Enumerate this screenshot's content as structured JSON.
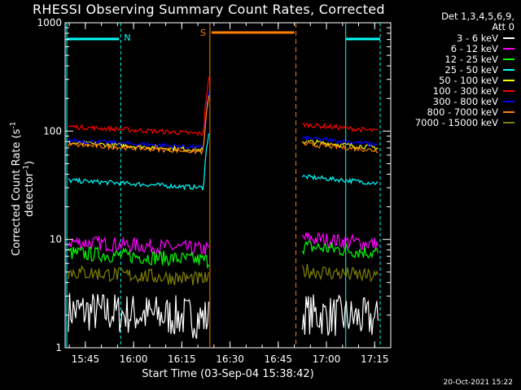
{
  "chart_data": {
    "type": "line",
    "title": "RHESSI Observing Summary Count Rates, Corrected",
    "xlabel": "Start Time (03-Sep-04 15:38:42)",
    "ylabel_main": "Corrected Count Rate (s",
    "ylabel_sup1": "-1",
    "ylabel_mid": " detector",
    "ylabel_sup2": "-1",
    "ylabel_end": ")",
    "yscale": "log",
    "ylim": [
      1,
      1000
    ],
    "xlim": [
      "15:38:42",
      "17:20:00"
    ],
    "x_ticks": [
      "15:45",
      "16:00",
      "16:15",
      "16:30",
      "16:45",
      "17:00",
      "17:15"
    ],
    "y_ticks": [
      "1",
      "10",
      "100",
      "1000"
    ],
    "legend_header": [
      "Det 1,3,4,5,6,9,",
      "Att 0"
    ],
    "legend_position": "right",
    "series": [
      {
        "name": "3 - 6 keV",
        "color": "#ffffff",
        "start": 2.2,
        "end": 1.8
      },
      {
        "name": "6 - 12 keV",
        "color": "#ff00ff",
        "start": 9.5,
        "end": 9.0
      },
      {
        "name": "12 - 25 keV",
        "color": "#00ff00",
        "start": 7.5,
        "end": 7.5
      },
      {
        "name": "25 - 50 keV",
        "color": "#00ffff",
        "start": 35,
        "end": 33
      },
      {
        "name": "50 - 100 keV",
        "color": "#ffff00",
        "start": 78,
        "end": 70
      },
      {
        "name": "100 - 300 keV",
        "color": "#ff0000",
        "start": 110,
        "end": 100
      },
      {
        "name": "300 - 800 keV",
        "color": "#0000ff",
        "start": 82,
        "end": 75
      },
      {
        "name": "800 - 7000 keV",
        "color": "#ff8000",
        "start": 75,
        "end": 66
      },
      {
        "name": "7000 - 15000 keV",
        "color": "#808000",
        "start": 5.0,
        "end": 4.5
      }
    ],
    "annotations": [
      {
        "label": "N",
        "color": "#00ffff",
        "type": "night"
      },
      {
        "label": "S",
        "color": "#ff8000",
        "type": "saa"
      }
    ]
  },
  "stamp": "20-Oct-2021 15:22"
}
